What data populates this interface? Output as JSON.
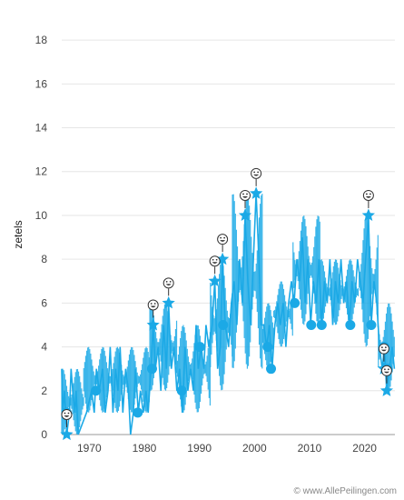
{
  "chart_data": {
    "type": "line",
    "ylabel": "zetels",
    "xlabel": "",
    "y_ticks": [
      0,
      2,
      4,
      6,
      8,
      10,
      12,
      14,
      16,
      18
    ],
    "x_ticks": [
      1970,
      1980,
      1990,
      2000,
      2010,
      2020
    ],
    "xlim": [
      1965.0,
      2025.5
    ],
    "ylim": [
      0,
      19
    ],
    "grid": true,
    "line_color": "#1BA9E6",
    "marker_color": "#1BA9E6",
    "series": [
      {
        "values_by_date": [
          [
            1965.0,
            3
          ],
          [
            1965.2,
            1
          ],
          [
            1965.5,
            2
          ],
          [
            1965.9,
            0
          ],
          [
            1966.4,
            1
          ],
          [
            1966.7,
            3
          ],
          [
            1967.0,
            2
          ],
          [
            1967.4,
            1
          ],
          [
            1967.6,
            2
          ],
          [
            1968.0,
            0
          ],
          [
            1969.5,
            1
          ],
          [
            1970.4,
            2
          ],
          [
            1970.9,
            1
          ],
          [
            1971.3,
            3
          ],
          [
            1971.8,
            2
          ],
          [
            1972.4,
            3
          ],
          [
            1972.9,
            1
          ],
          [
            1973.4,
            2
          ],
          [
            1973.8,
            4
          ],
          [
            1974.3,
            1
          ],
          [
            1974.8,
            3
          ],
          [
            1975.2,
            2
          ],
          [
            1975.6,
            4
          ],
          [
            1976.1,
            1
          ],
          [
            1976.6,
            3
          ],
          [
            1977.1,
            2
          ],
          [
            1977.5,
            0
          ],
          [
            1978.0,
            1
          ],
          [
            1978.4,
            3
          ],
          [
            1978.9,
            1
          ],
          [
            1979.3,
            2
          ],
          [
            1979.8,
            1
          ],
          [
            1980.3,
            2
          ],
          [
            1980.7,
            1
          ],
          [
            1981.2,
            3
          ],
          [
            1981.6,
            5
          ],
          [
            1982.0,
            3
          ],
          [
            1982.5,
            4
          ],
          [
            1983.0,
            2
          ],
          [
            1983.5,
            5
          ],
          [
            1984.0,
            3
          ],
          [
            1984.4,
            6
          ],
          [
            1984.9,
            3
          ],
          [
            1985.4,
            4
          ],
          [
            1985.9,
            2
          ],
          [
            1986.4,
            3
          ],
          [
            1986.9,
            1
          ],
          [
            1987.4,
            4
          ],
          [
            1987.9,
            2
          ],
          [
            1988.4,
            3
          ],
          [
            1988.9,
            2
          ],
          [
            1989.4,
            5
          ],
          [
            1989.8,
            3
          ],
          [
            1990.3,
            4
          ],
          [
            1990.8,
            3
          ],
          [
            1991.2,
            5
          ],
          [
            1991.7,
            4
          ],
          [
            1992.3,
            5
          ],
          [
            1992.8,
            7
          ],
          [
            1993.3,
            3
          ],
          [
            1993.8,
            4
          ],
          [
            1994.2,
            8
          ],
          [
            1994.7,
            5
          ],
          [
            1995.3,
            4
          ],
          [
            1995.8,
            6
          ],
          [
            1996.3,
            7
          ],
          [
            1996.8,
            5
          ],
          [
            1997.3,
            8
          ],
          [
            1997.8,
            6
          ],
          [
            1998.3,
            10
          ],
          [
            1998.8,
            7
          ],
          [
            1999.3,
            5
          ],
          [
            1999.8,
            8
          ],
          [
            2000.3,
            11
          ],
          [
            2000.8,
            8
          ],
          [
            2001.2,
            5
          ],
          [
            2001.7,
            5
          ],
          [
            2002.2,
            4
          ],
          [
            2002.7,
            5
          ],
          [
            2003.2,
            3
          ],
          [
            2003.7,
            5
          ],
          [
            2004.2,
            6
          ],
          [
            2004.7,
            5
          ],
          [
            2005.2,
            6
          ],
          [
            2005.7,
            4
          ],
          [
            2006.2,
            6
          ],
          [
            2006.7,
            7
          ],
          [
            2007.2,
            6
          ],
          [
            2007.7,
            8
          ],
          [
            2008.2,
            7
          ],
          [
            2008.7,
            9
          ],
          [
            2009.2,
            6
          ],
          [
            2009.7,
            8
          ],
          [
            2010.2,
            5
          ],
          [
            2010.7,
            7
          ],
          [
            2011.2,
            6
          ],
          [
            2011.7,
            8
          ],
          [
            2012.2,
            5
          ],
          [
            2012.7,
            7
          ],
          [
            2013.2,
            6
          ],
          [
            2013.7,
            8
          ],
          [
            2014.2,
            5
          ],
          [
            2014.7,
            7
          ],
          [
            2015.2,
            6
          ],
          [
            2015.7,
            8
          ],
          [
            2016.2,
            6
          ],
          [
            2016.7,
            7
          ],
          [
            2017.2,
            5
          ],
          [
            2017.7,
            7
          ],
          [
            2018.2,
            6
          ],
          [
            2018.7,
            8
          ],
          [
            2019.2,
            7
          ],
          [
            2019.7,
            6
          ],
          [
            2020.2,
            8
          ],
          [
            2020.7,
            10
          ],
          [
            2021.2,
            5
          ],
          [
            2021.7,
            7
          ],
          [
            2022.2,
            6
          ],
          [
            2022.7,
            4
          ],
          [
            2023.2,
            3
          ],
          [
            2023.6,
            4
          ],
          [
            2024.0,
            2
          ],
          [
            2024.5,
            3
          ],
          [
            2025.0,
            4
          ],
          [
            2025.4,
            3
          ]
        ]
      }
    ],
    "band": {
      "segments": [
        {
          "x": [
            1965.0,
            1969.0
          ],
          "min": 0,
          "max": 3
        },
        {
          "x": [
            1969.0,
            1981.0
          ],
          "min": 1,
          "max": 4
        },
        {
          "x": [
            1981.0,
            1986.0
          ],
          "min": 2,
          "max": 6
        },
        {
          "x": [
            1986.0,
            1992.0
          ],
          "min": 1,
          "max": 5
        },
        {
          "x": [
            1992.0,
            1996.0
          ],
          "min": 2,
          "max": 8
        },
        {
          "x": [
            1996.0,
            2001.5
          ],
          "min": 3,
          "max": 11
        },
        {
          "x": [
            2001.5,
            2003.5
          ],
          "min": 3,
          "max": 6
        },
        {
          "x": [
            2003.5,
            2007.0
          ],
          "min": 4,
          "max": 7
        },
        {
          "x": [
            2007.0,
            2012.0
          ],
          "min": 5,
          "max": 10
        },
        {
          "x": [
            2012.0,
            2019.0
          ],
          "min": 5,
          "max": 8
        },
        {
          "x": [
            2019.0,
            2022.5
          ],
          "min": 4,
          "max": 10
        },
        {
          "x": [
            2022.5,
            2025.5
          ],
          "min": 2,
          "max": 6
        }
      ]
    },
    "circle_markers": [
      [
        1965.9,
        1
      ],
      [
        1971.2,
        2
      ],
      [
        1978.8,
        1
      ],
      [
        1981.4,
        3
      ],
      [
        1986.8,
        2
      ],
      [
        1990.1,
        4
      ],
      [
        1994.3,
        5
      ],
      [
        2002.4,
        4
      ],
      [
        2003.0,
        3
      ],
      [
        2007.3,
        6
      ],
      [
        2010.3,
        5
      ],
      [
        2012.2,
        5
      ],
      [
        2017.4,
        5
      ],
      [
        2021.2,
        5
      ],
      [
        2023.6,
        4
      ],
      [
        2024.2,
        3
      ]
    ],
    "star_markers": [
      [
        1965.9,
        0
      ],
      [
        1981.6,
        5
      ],
      [
        1984.4,
        6
      ],
      [
        1992.8,
        7
      ],
      [
        1994.2,
        8
      ],
      [
        1998.3,
        10
      ],
      [
        2000.3,
        11
      ],
      [
        2020.7,
        10
      ],
      [
        2023.5,
        3
      ],
      [
        2024.0,
        2
      ]
    ],
    "smiley_annotations": [
      [
        1965.9,
        0
      ],
      [
        1981.6,
        5
      ],
      [
        1984.4,
        6
      ],
      [
        1992.8,
        7
      ],
      [
        1994.2,
        8
      ],
      [
        1998.3,
        10
      ],
      [
        2000.3,
        11
      ],
      [
        2020.7,
        10
      ],
      [
        2023.5,
        3
      ],
      [
        2024.0,
        2
      ]
    ]
  },
  "credit": "© www.AllePeilingen.com"
}
